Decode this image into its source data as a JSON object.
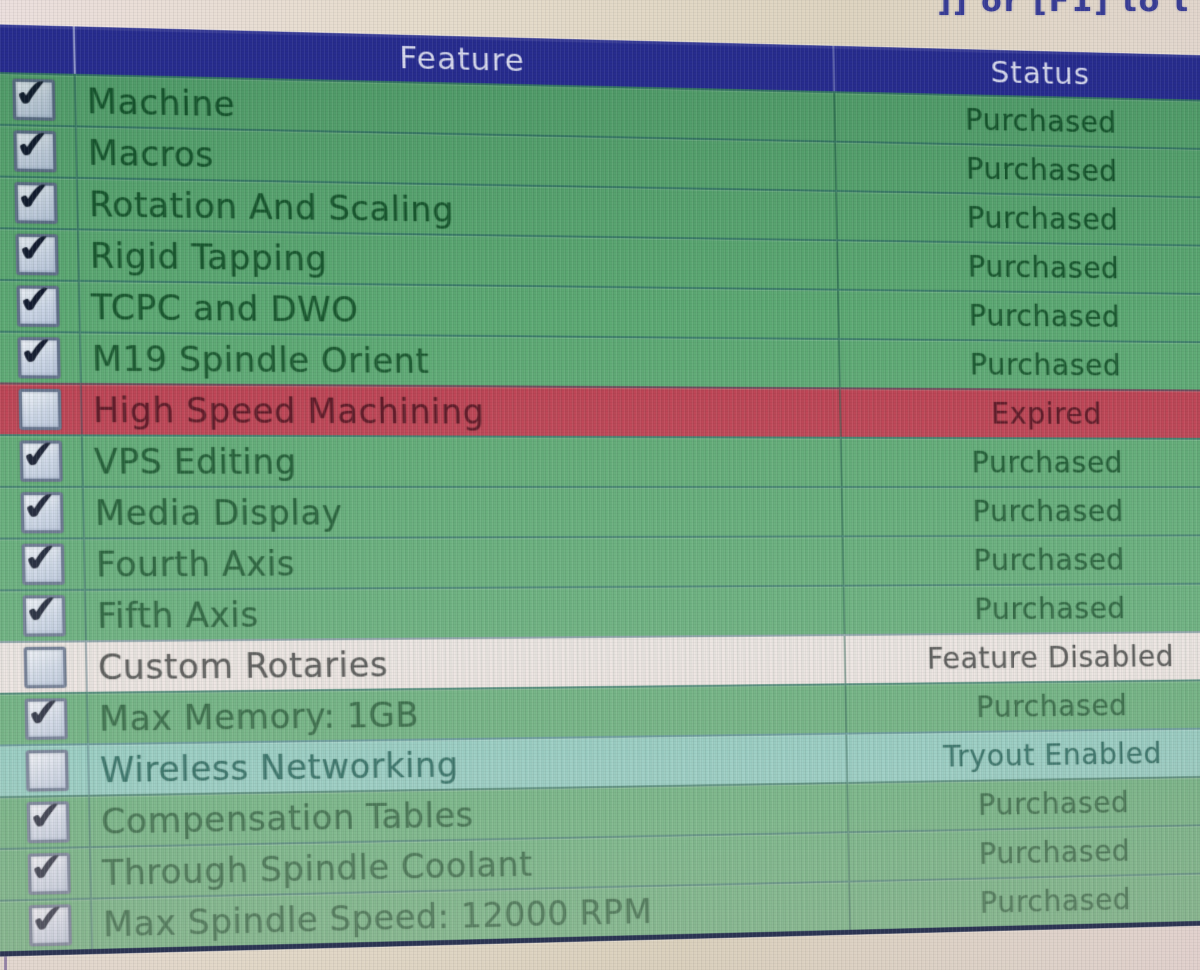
{
  "screen_note_fragment": "]] or [F1] to t",
  "icons": {
    "checkmark": "✔"
  },
  "table": {
    "header": {
      "feature": "Feature",
      "status": "Status"
    },
    "rows": [
      {
        "checked": true,
        "feature": "Machine",
        "status": "Purchased",
        "variant": "purchased"
      },
      {
        "checked": true,
        "feature": "Macros",
        "status": "Purchased",
        "variant": "purchased"
      },
      {
        "checked": true,
        "feature": "Rotation And Scaling",
        "status": "Purchased",
        "variant": "purchased"
      },
      {
        "checked": true,
        "feature": "Rigid Tapping",
        "status": "Purchased",
        "variant": "purchased"
      },
      {
        "checked": true,
        "feature": "TCPC and DWO",
        "status": "Purchased",
        "variant": "purchased"
      },
      {
        "checked": true,
        "feature": "M19 Spindle Orient",
        "status": "Purchased",
        "variant": "purchased"
      },
      {
        "checked": false,
        "feature": "High Speed Machining",
        "status": "Expired",
        "variant": "expired"
      },
      {
        "checked": true,
        "feature": "VPS Editing",
        "status": "Purchased",
        "variant": "purchased"
      },
      {
        "checked": true,
        "feature": "Media Display",
        "status": "Purchased",
        "variant": "purchased"
      },
      {
        "checked": true,
        "feature": "Fourth Axis",
        "status": "Purchased",
        "variant": "purchased"
      },
      {
        "checked": true,
        "feature": "Fifth Axis",
        "status": "Purchased",
        "variant": "purchased"
      },
      {
        "checked": false,
        "feature": "Custom Rotaries",
        "status": "Feature Disabled",
        "variant": "disabled"
      },
      {
        "checked": true,
        "feature": "Max Memory: 1GB",
        "status": "Purchased",
        "variant": "purchased"
      },
      {
        "checked": false,
        "feature": "Wireless Networking",
        "status": "Tryout Enabled",
        "variant": "tryout"
      },
      {
        "checked": true,
        "feature": "Compensation Tables",
        "status": "Purchased",
        "variant": "purchased"
      },
      {
        "checked": true,
        "feature": "Through Spindle Coolant",
        "status": "Purchased",
        "variant": "purchased"
      },
      {
        "checked": true,
        "feature": "Max Spindle Speed: 12000 RPM",
        "status": "Purchased",
        "variant": "purchased"
      }
    ]
  },
  "colors": {
    "header_bg": "#262c93",
    "header_text": "#d4d6ec",
    "note_text": "#383d9b",
    "variants": {
      "purchased": {
        "bg": "#58aa70",
        "text": "#14582b"
      },
      "expired": {
        "bg": "#c23c4e",
        "text": "#5e0e1f"
      },
      "disabled": {
        "bg": "#eae3e0",
        "text": "#454545"
      },
      "tryout": {
        "bg": "#82c8bb",
        "text": "#0c5c4f"
      }
    }
  }
}
